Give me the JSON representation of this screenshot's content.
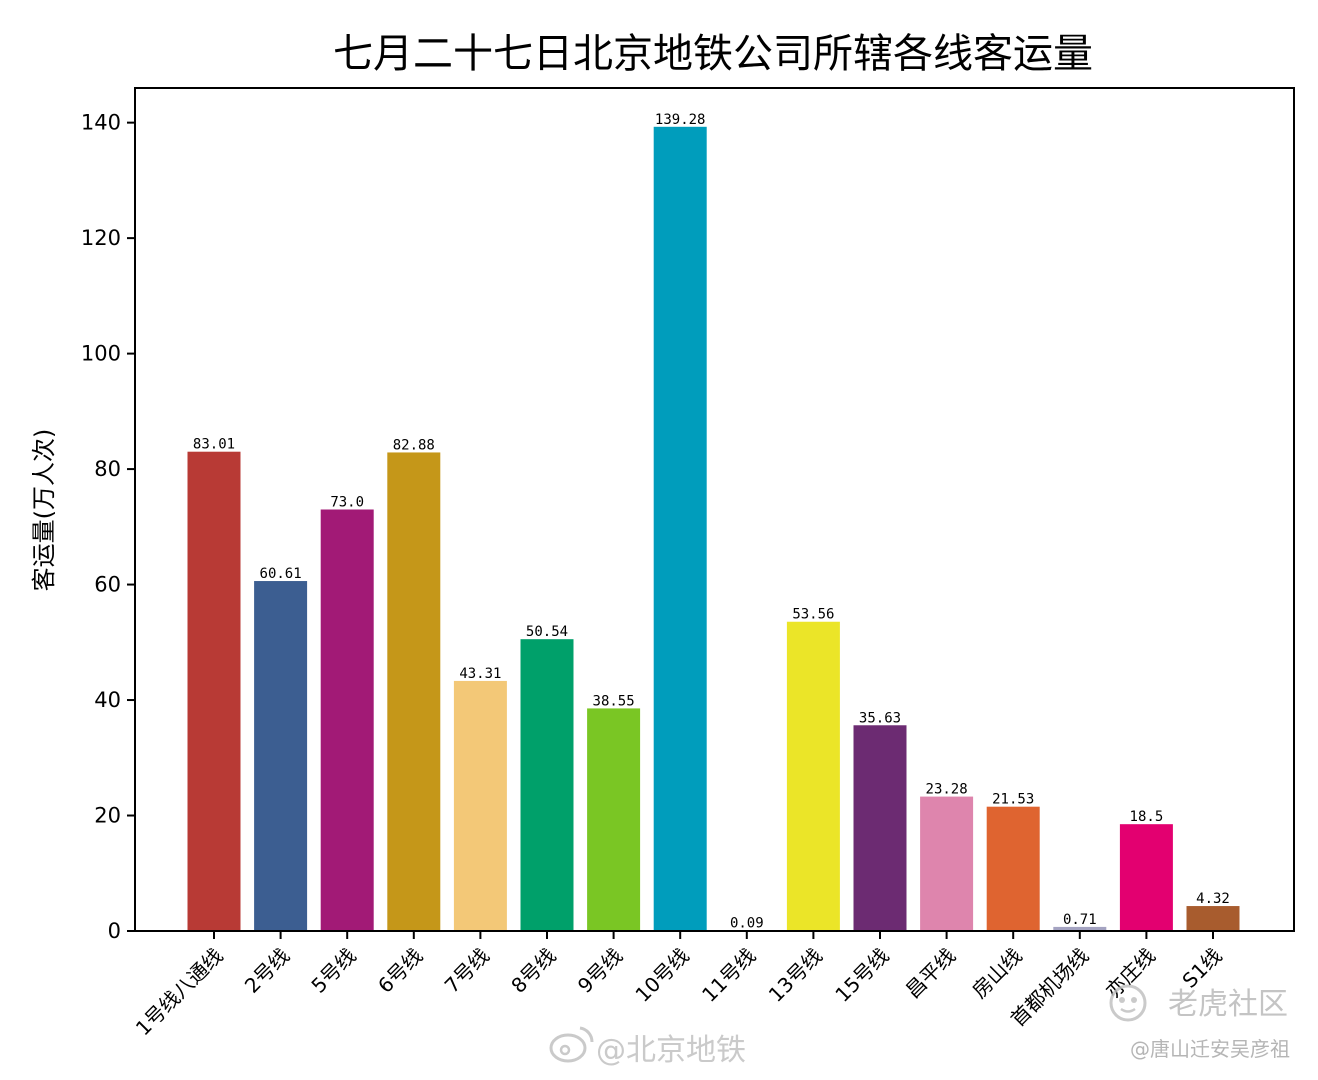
{
  "chart_data": {
    "type": "bar",
    "title": "七月二十七日北京地铁公司所辖各线客运量",
    "ylabel": "客运量(万人次)",
    "xlabel": "",
    "ylim": [
      0,
      146
    ],
    "yticks": [
      0,
      20,
      40,
      60,
      80,
      100,
      120,
      140
    ],
    "grid": false,
    "categories": [
      "1号线八通线",
      "2号线",
      "5号线",
      "6号线",
      "7号线",
      "8号线",
      "9号线",
      "10号线",
      "11号线",
      "13号线",
      "15号线",
      "昌平线",
      "房山线",
      "首都机场线",
      "亦庄线",
      "S1线"
    ],
    "values": [
      83.01,
      60.61,
      73.0,
      82.88,
      43.31,
      50.54,
      38.55,
      139.28,
      0.09,
      53.56,
      35.63,
      23.28,
      21.53,
      0.71,
      18.5,
      4.32
    ],
    "value_labels": [
      "83.01",
      "60.61",
      "73.0",
      "82.88",
      "43.31",
      "50.54",
      "38.55",
      "139.28",
      "0.09",
      "53.56",
      "35.63",
      "23.28",
      "21.53",
      "0.71",
      "18.5",
      "4.32"
    ],
    "colors": [
      "#b83a35",
      "#3c5e91",
      "#a21a76",
      "#c59719",
      "#f3c877",
      "#00a06a",
      "#7ac624",
      "#009dbc",
      "#e4a98f",
      "#ebe528",
      "#6c2b72",
      "#de85ad",
      "#df6430",
      "#a4a3c1",
      "#e30070",
      "#a85c2e"
    ]
  },
  "watermarks": {
    "weibo": "@北京地铁",
    "site": "老虎社区",
    "user": "@唐山迁安吴彦祖"
  }
}
